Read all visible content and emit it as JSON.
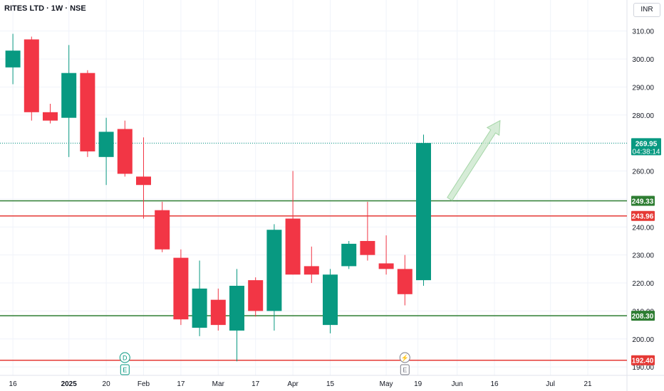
{
  "header": {
    "title": "RITES LTD · 1W · NSE",
    "currency": "INR"
  },
  "colors": {
    "up": "#089981",
    "down": "#f23645",
    "support": "#2e7d32",
    "resistance": "#e53935",
    "grid": "#f0f3fa",
    "axis_text": "#131722"
  },
  "chart_data": {
    "type": "candlestick",
    "title": "RITES LTD · 1W · NSE",
    "ylim": [
      187,
      316
    ],
    "y_ticks": [
      190,
      200,
      210,
      220,
      230,
      240,
      250,
      260,
      270,
      280,
      290,
      300,
      310
    ],
    "y_tick_labels": [
      "190.00",
      "200.00",
      "210.00",
      "220.00",
      "230.00",
      "240.00",
      "250.00",
      "260.00",
      "270.00",
      "280.00",
      "290.00",
      "300.00",
      "310.00"
    ],
    "x_ticks": [
      {
        "week": 0.5,
        "label": "16",
        "bold": false
      },
      {
        "week": 3.5,
        "label": "2025",
        "bold": true
      },
      {
        "week": 5.5,
        "label": "20",
        "bold": false
      },
      {
        "week": 7.5,
        "label": "Feb",
        "bold": false
      },
      {
        "week": 9.5,
        "label": "17",
        "bold": false
      },
      {
        "week": 11.5,
        "label": "Mar",
        "bold": false
      },
      {
        "week": 13.5,
        "label": "17",
        "bold": false
      },
      {
        "week": 15.5,
        "label": "Apr",
        "bold": false
      },
      {
        "week": 17.5,
        "label": "15",
        "bold": false
      },
      {
        "week": 20.5,
        "label": "May",
        "bold": false
      },
      {
        "week": 22.2,
        "label": "19",
        "bold": false
      },
      {
        "week": 24.3,
        "label": "Jun",
        "bold": false
      },
      {
        "week": 26.3,
        "label": "16",
        "bold": false
      },
      {
        "week": 29.3,
        "label": "Jul",
        "bold": false
      },
      {
        "week": 31.3,
        "label": "21",
        "bold": false
      }
    ],
    "candles": [
      {
        "o": 297,
        "h": 309,
        "l": 291,
        "c": 303
      },
      {
        "o": 307,
        "h": 308,
        "l": 278,
        "c": 281
      },
      {
        "o": 281,
        "h": 284,
        "l": 277,
        "c": 278
      },
      {
        "o": 279,
        "h": 305,
        "l": 265,
        "c": 295
      },
      {
        "o": 295,
        "h": 296,
        "l": 265,
        "c": 267
      },
      {
        "o": 265,
        "h": 279,
        "l": 255,
        "c": 274
      },
      {
        "o": 275,
        "h": 278,
        "l": 258,
        "c": 259
      },
      {
        "o": 258,
        "h": 272,
        "l": 243,
        "c": 255
      },
      {
        "o": 246,
        "h": 249,
        "l": 231,
        "c": 232
      },
      {
        "o": 229,
        "h": 232,
        "l": 205,
        "c": 207
      },
      {
        "o": 204,
        "h": 228,
        "l": 201,
        "c": 218
      },
      {
        "o": 214,
        "h": 218,
        "l": 203,
        "c": 205
      },
      {
        "o": 203,
        "h": 225,
        "l": 192,
        "c": 219
      },
      {
        "o": 221,
        "h": 222,
        "l": 208,
        "c": 210
      },
      {
        "o": 210,
        "h": 241,
        "l": 203,
        "c": 239
      },
      {
        "o": 243,
        "h": 260,
        "l": 223,
        "c": 223
      },
      {
        "o": 226,
        "h": 233,
        "l": 220,
        "c": 223
      },
      {
        "o": 205,
        "h": 225,
        "l": 202,
        "c": 223
      },
      {
        "o": 226,
        "h": 235,
        "l": 225,
        "c": 234
      },
      {
        "o": 235,
        "h": 249,
        "l": 228,
        "c": 230
      },
      {
        "o": 227,
        "h": 237,
        "l": 223,
        "c": 225
      },
      {
        "o": 225,
        "h": 230,
        "l": 212,
        "c": 216
      },
      {
        "o": 221,
        "h": 273,
        "l": 219,
        "c": 270
      }
    ],
    "levels": [
      {
        "value": 249.33,
        "label": "249.33",
        "kind": "support"
      },
      {
        "value": 243.96,
        "label": "243.96",
        "kind": "resistance"
      },
      {
        "value": 208.3,
        "label": "208.30",
        "kind": "support"
      },
      {
        "value": 192.4,
        "label": "192.40",
        "kind": "resistance"
      }
    ],
    "last_price": {
      "value": 269.95,
      "label": "269.95",
      "countdown": "04:38:14"
    },
    "markers": [
      {
        "week": 6.5,
        "symbol": "D",
        "kind": "dividend"
      },
      {
        "week": 6.5,
        "symbol": "E",
        "kind": "earnings"
      },
      {
        "week": 21.5,
        "symbol": "⚡",
        "kind": "split"
      },
      {
        "week": 21.5,
        "symbol": "E",
        "kind": "earnings"
      }
    ],
    "arrow": {
      "from_week": 23.9,
      "from_value": 250,
      "to_week": 26.6,
      "to_value": 278
    }
  }
}
